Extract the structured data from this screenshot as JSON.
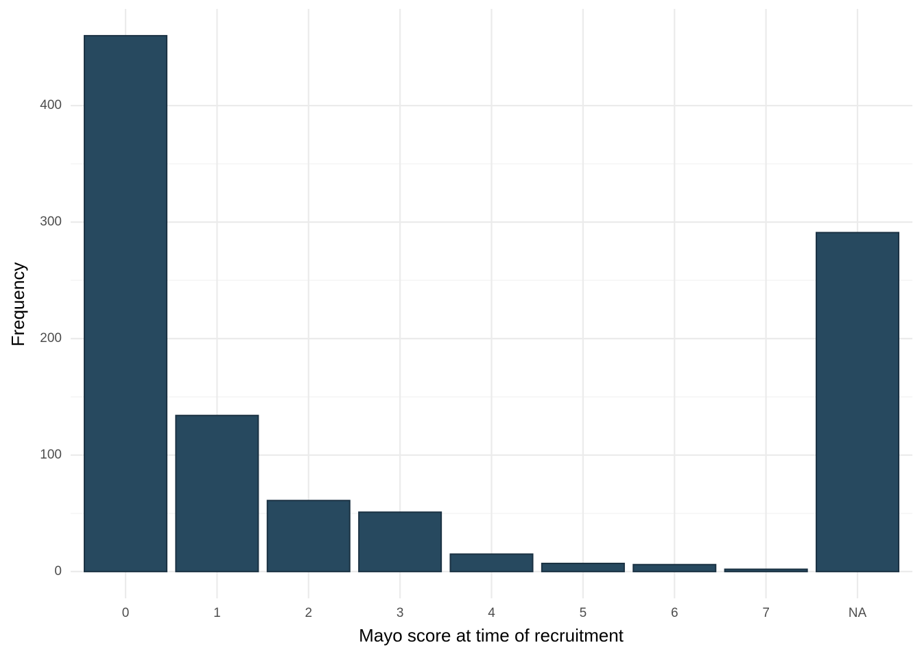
{
  "chart_data": {
    "type": "bar",
    "x_label": "Mayo score at time of recruitment",
    "y_label": "Frequency",
    "categories": [
      "0",
      "1",
      "2",
      "3",
      "4",
      "5",
      "6",
      "7",
      "NA"
    ],
    "values": [
      460,
      134,
      61,
      51,
      15,
      7,
      6,
      2,
      291
    ],
    "color": "#27495f",
    "ylim": [
      -23,
      483
    ],
    "yticks": [
      0,
      100,
      200,
      300,
      400
    ],
    "grid": true
  }
}
